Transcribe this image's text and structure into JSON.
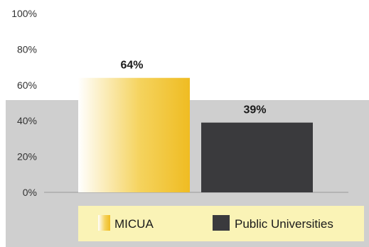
{
  "chart_data": {
    "type": "bar",
    "categories": [
      "MICUA",
      "Public Universities"
    ],
    "values": [
      64,
      39
    ],
    "data_labels": [
      "64%",
      "39%"
    ],
    "yticks": [
      "0%",
      "20%",
      "40%",
      "60%",
      "80%",
      "100%"
    ],
    "ylim": [
      0,
      100
    ],
    "legend": {
      "placement": "bottom",
      "entries": [
        "MICUA",
        "Public Universities"
      ]
    },
    "colors": {
      "micua": "#f2c12e",
      "public": "#3a3a3d",
      "panel": "#cfcfcf",
      "legend_bg": "#faf3b6"
    }
  }
}
